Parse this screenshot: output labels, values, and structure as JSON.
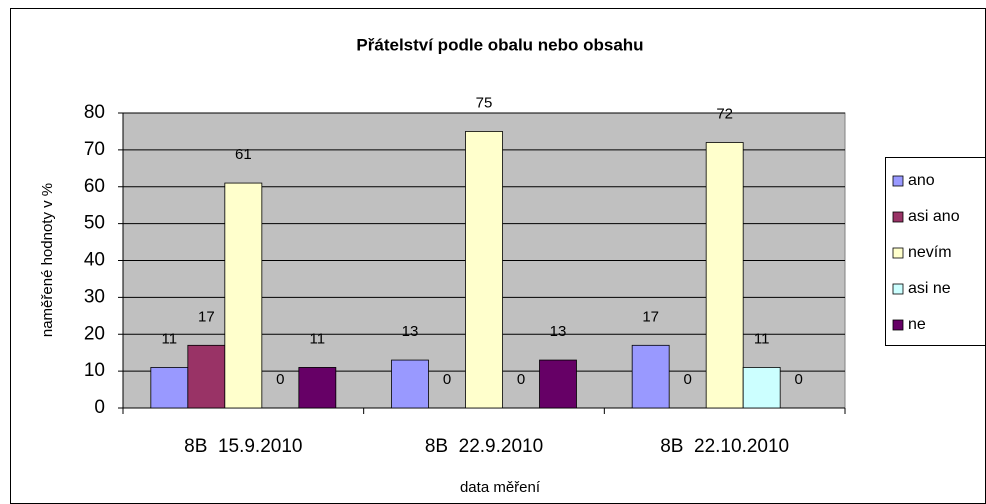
{
  "chart_data": {
    "type": "bar",
    "title": "Přátelství podle obalu nebo obsahu",
    "xlabel": "data měření",
    "ylabel": "naměřené hodnoty v %",
    "categories": [
      "8B  15.9.2010",
      "8B  22.9.2010",
      "8B  22.10.2010"
    ],
    "series": [
      {
        "name": "ano",
        "color": "#9999ff",
        "values": [
          11,
          13,
          17
        ]
      },
      {
        "name": "asi ano",
        "color": "#993366",
        "values": [
          17,
          0,
          0
        ]
      },
      {
        "name": "nevím",
        "color": "#ffffcc",
        "values": [
          61,
          75,
          72
        ]
      },
      {
        "name": "asi ne",
        "color": "#ccffff",
        "values": [
          0,
          0,
          11
        ]
      },
      {
        "name": "ne",
        "color": "#660066",
        "values": [
          11,
          13,
          0
        ]
      }
    ],
    "ylim": [
      0,
      80
    ],
    "yticks": [
      0,
      10,
      20,
      30,
      40,
      50,
      60,
      70,
      80
    ],
    "grid": true,
    "legend": "right"
  }
}
